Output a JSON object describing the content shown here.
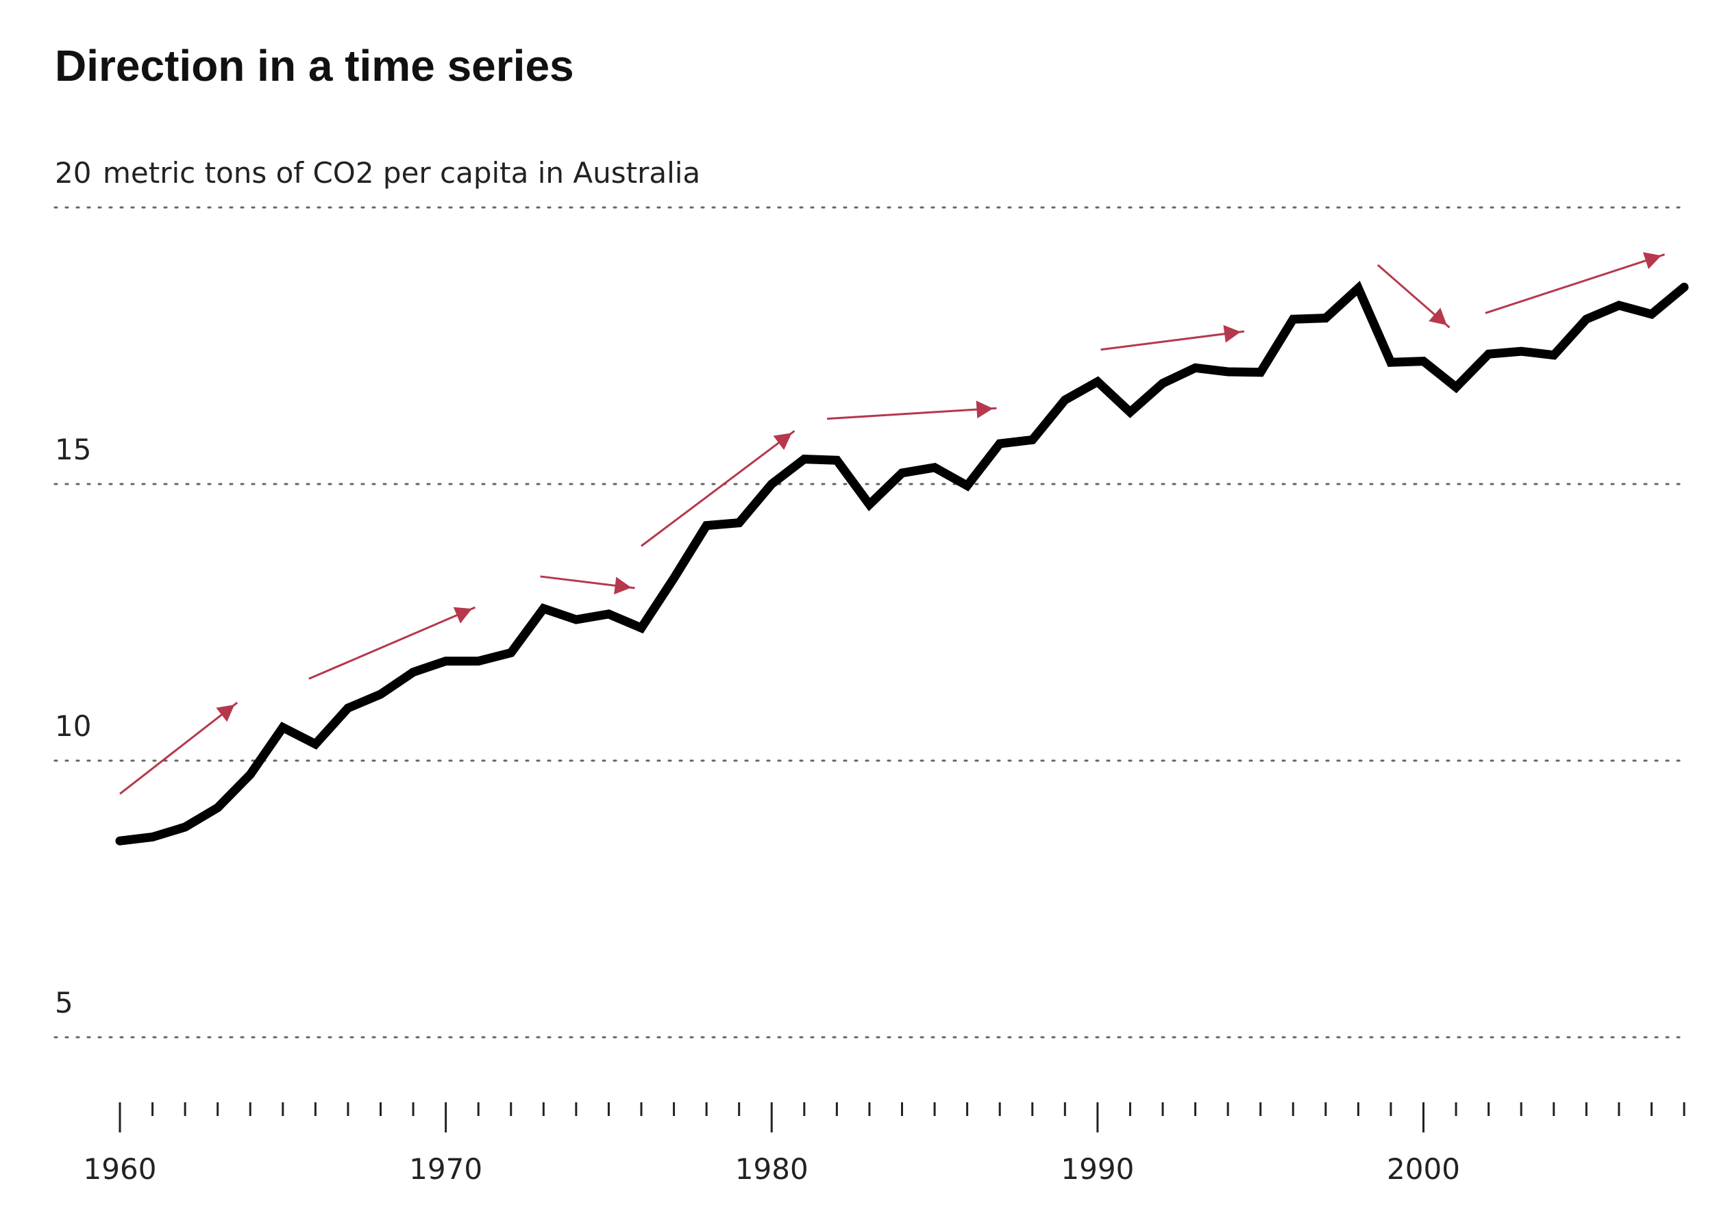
{
  "chart_data": {
    "type": "line",
    "title": "Direction in a time series",
    "ylabel": "metric tons of CO2 per capita in Australia",
    "xlabel": "",
    "ylim": [
      3,
      20
    ],
    "xlim": [
      1960,
      2008
    ],
    "y_ticks": [
      {
        "value": 20,
        "label": "20"
      },
      {
        "value": 15,
        "label": "15"
      },
      {
        "value": 10,
        "label": "10"
      },
      {
        "value": 5,
        "label": "5"
      }
    ],
    "x_major_ticks": [
      {
        "value": 1960,
        "label": "1960"
      },
      {
        "value": 1970,
        "label": "1970"
      },
      {
        "value": 1980,
        "label": "1980"
      },
      {
        "value": 1990,
        "label": "1990"
      },
      {
        "value": 2000,
        "label": "2000"
      }
    ],
    "grid": true,
    "series": [
      {
        "color": "#000000",
        "x": [
          1960,
          1961,
          1962,
          1963,
          1964,
          1965,
          1966,
          1967,
          1968,
          1969,
          1970,
          1971,
          1972,
          1973,
          1974,
          1975,
          1976,
          1977,
          1978,
          1979,
          1980,
          1981,
          1982,
          1983,
          1984,
          1985,
          1986,
          1987,
          1988,
          1989,
          1990,
          1991,
          1992,
          1993,
          1994,
          1995,
          1996,
          1997,
          1998,
          1999,
          2000,
          2001,
          2002,
          2003,
          2004,
          2005,
          2006,
          2007,
          2008
        ],
        "values": [
          8.55,
          8.62,
          8.8,
          9.15,
          9.75,
          10.6,
          10.3,
          10.95,
          11.2,
          11.6,
          11.8,
          11.8,
          11.95,
          12.75,
          12.55,
          12.65,
          12.4,
          13.3,
          14.25,
          14.3,
          15.0,
          15.45,
          15.43,
          14.63,
          15.2,
          15.3,
          14.97,
          15.73,
          15.8,
          16.52,
          16.85,
          16.3,
          16.82,
          17.1,
          17.03,
          17.02,
          17.98,
          18.0,
          18.54,
          17.2,
          17.22,
          16.75,
          17.35,
          17.4,
          17.33,
          17.98,
          18.23,
          18.07,
          18.56
        ]
      }
    ],
    "annotations": {
      "arrow_color": "#b5384c",
      "arrows": [
        {
          "x1": 1960.0,
          "y1": 9.4,
          "x2": 1963.6,
          "y2": 11.05
        },
        {
          "x1": 1965.8,
          "y1": 11.48,
          "x2": 1970.9,
          "y2": 12.77
        },
        {
          "x1": 1972.9,
          "y1": 13.33,
          "x2": 1975.8,
          "y2": 13.12
        },
        {
          "x1": 1976.0,
          "y1": 13.88,
          "x2": 1980.7,
          "y2": 15.96
        },
        {
          "x1": 1981.7,
          "y1": 16.18,
          "x2": 1986.9,
          "y2": 16.37
        },
        {
          "x1": 1990.1,
          "y1": 17.43,
          "x2": 1994.5,
          "y2": 17.76
        },
        {
          "x1": 1998.6,
          "y1": 18.96,
          "x2": 2000.8,
          "y2": 17.83
        },
        {
          "x1": 2001.9,
          "y1": 18.09,
          "x2": 2007.4,
          "y2": 19.15
        }
      ]
    }
  }
}
